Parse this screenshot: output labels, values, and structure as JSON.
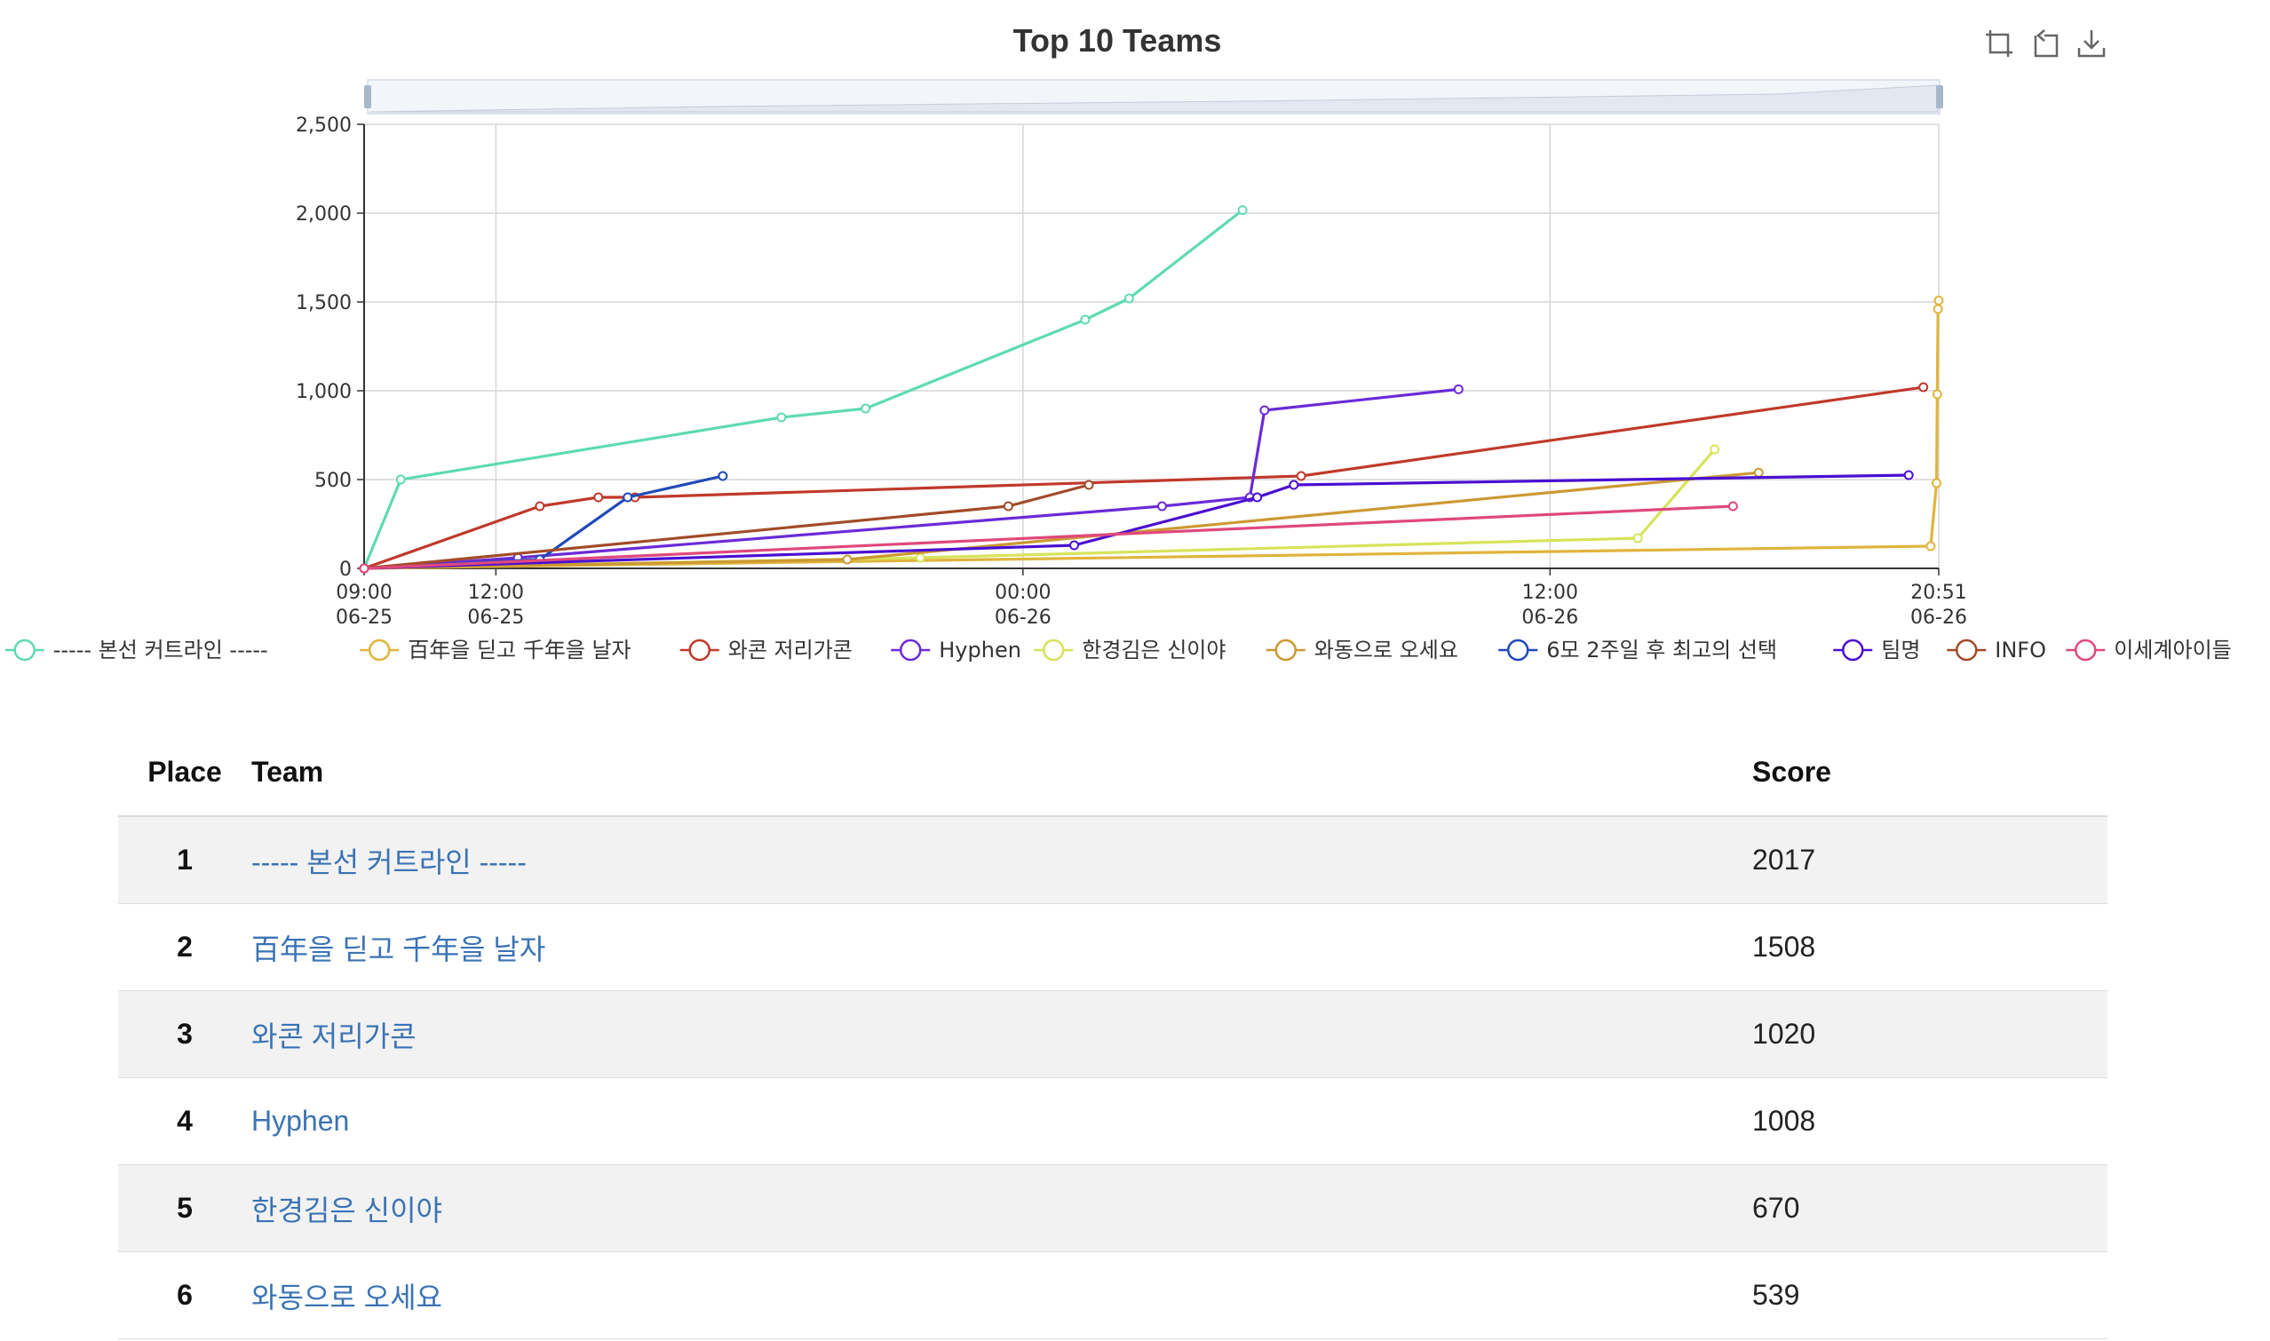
{
  "chart_data": {
    "type": "line",
    "title": "Top 10 Teams",
    "x_axis": {
      "type": "time",
      "ticks": [
        {
          "time": "06-25 09:00",
          "label_top": "09:00",
          "label_bottom": "06-25"
        },
        {
          "time": "06-25 12:00",
          "label_top": "12:00",
          "label_bottom": "06-25"
        },
        {
          "time": "06-26 00:00",
          "label_top": "00:00",
          "label_bottom": "06-26"
        },
        {
          "time": "06-26 12:00",
          "label_top": "12:00",
          "label_bottom": "06-26"
        },
        {
          "time": "06-26 20:51",
          "label_top": "20:51",
          "label_bottom": "06-26"
        }
      ],
      "range": [
        "06-25 09:00",
        "06-26 20:51"
      ]
    },
    "y_axis": {
      "range": [
        0,
        2500
      ],
      "ticks": [
        0,
        500,
        1000,
        1500,
        2000,
        2500
      ],
      "tick_labels": [
        "0",
        "500",
        "1,000",
        "1,500",
        "2,000",
        "2,500"
      ]
    },
    "grid": true,
    "legend": "bottom",
    "series": [
      {
        "name": "----- 본선 커트라인 -----",
        "color": "#5fdbb0",
        "points": [
          [
            "06-25 09:00",
            0
          ],
          [
            "06-25 09:50",
            500
          ],
          [
            "06-25 18:30",
            850
          ],
          [
            "06-25 20:25",
            900
          ],
          [
            "06-26 01:25",
            1400
          ],
          [
            "06-26 02:25",
            1520
          ],
          [
            "06-26 05:00",
            2017
          ]
        ]
      },
      {
        "name": "百年을 딛고 千年을 날자",
        "color": "#e0b43c",
        "points": [
          [
            "06-25 09:00",
            0
          ],
          [
            "06-26 20:40",
            125
          ],
          [
            "06-26 20:48",
            480
          ],
          [
            "06-26 20:49",
            980
          ],
          [
            "06-26 20:50",
            1460
          ],
          [
            "06-26 20:51",
            1508
          ]
        ]
      },
      {
        "name": "와콘 저리가콘",
        "color": "#c0392b",
        "points": [
          [
            "06-25 09:00",
            0
          ],
          [
            "06-25 13:00",
            350
          ],
          [
            "06-25 14:20",
            400
          ],
          [
            "06-25 15:10",
            400
          ],
          [
            "06-26 06:20",
            520
          ],
          [
            "06-26 20:30",
            1020
          ]
        ]
      },
      {
        "name": "Hyphen",
        "color": "#6a2bd8",
        "points": [
          [
            "06-25 09:00",
            0
          ],
          [
            "06-25 12:30",
            60
          ],
          [
            "06-26 03:10",
            350
          ],
          [
            "06-26 05:10",
            400
          ],
          [
            "06-26 05:30",
            890
          ],
          [
            "06-26 09:55",
            1008
          ]
        ]
      },
      {
        "name": "한경김은 신이야",
        "color": "#d6e45a",
        "points": [
          [
            "06-25 09:00",
            0
          ],
          [
            "06-25 21:40",
            60
          ],
          [
            "06-26 14:00",
            170
          ],
          [
            "06-26 15:45",
            670
          ]
        ]
      },
      {
        "name": "와동으로 오세요",
        "color": "#cc9933",
        "points": [
          [
            "06-25 09:00",
            0
          ],
          [
            "06-25 20:00",
            50
          ],
          [
            "06-26 16:45",
            539
          ]
        ]
      },
      {
        "name": "6모 2주일 후 최고의 선택",
        "color": "#2149b8",
        "points": [
          [
            "06-25 09:00",
            0
          ],
          [
            "06-25 13:00",
            50
          ],
          [
            "06-25 15:00",
            400
          ],
          [
            "06-25 17:10",
            520
          ]
        ]
      },
      {
        "name": "팀명",
        "color": "#4a0fd1",
        "points": [
          [
            "06-25 09:00",
            0
          ],
          [
            "06-26 01:10",
            130
          ],
          [
            "06-26 05:20",
            400
          ],
          [
            "06-26 06:10",
            470
          ],
          [
            "06-26 20:10",
            525
          ]
        ]
      },
      {
        "name": "INFO",
        "color": "#a24b28",
        "points": [
          [
            "06-25 09:00",
            0
          ],
          [
            "06-25 23:40",
            350
          ],
          [
            "06-26 01:30",
            470
          ]
        ]
      },
      {
        "name": "이세계아이들",
        "color": "#e0487c",
        "points": [
          [
            "06-25 09:00",
            0
          ],
          [
            "06-26 16:10",
            350
          ]
        ]
      }
    ]
  },
  "toolbox": {
    "icons": [
      "zoom-icon",
      "zoom-reset-icon",
      "download-icon"
    ]
  },
  "scoreboard": {
    "headers": {
      "place": "Place",
      "team": "Team",
      "score": "Score"
    },
    "rows": [
      {
        "place": "1",
        "team": "----- 본선 커트라인 -----",
        "score": "2017"
      },
      {
        "place": "2",
        "team": "百年을 딛고 千年을 날자",
        "score": "1508"
      },
      {
        "place": "3",
        "team": "와콘 저리가콘",
        "score": "1020"
      },
      {
        "place": "4",
        "team": "Hyphen",
        "score": "1008"
      },
      {
        "place": "5",
        "team": "한경김은 신이야",
        "score": "670"
      },
      {
        "place": "6",
        "team": "와동으로 오세요",
        "score": "539"
      }
    ]
  }
}
